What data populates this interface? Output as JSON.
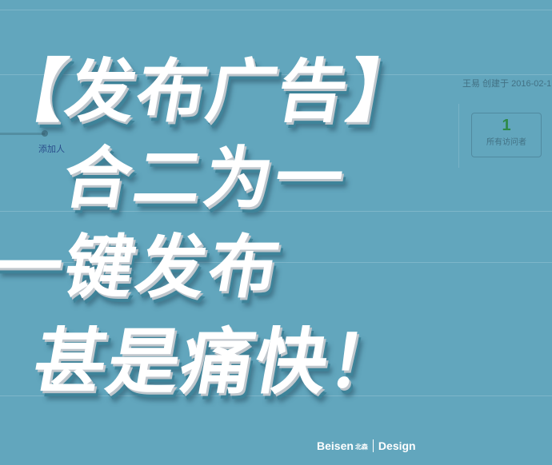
{
  "background_ui": {
    "meta": "王易 创建于 2016-02-1",
    "link": "添加人",
    "stat_value": "1",
    "stat_label": "所有访问者"
  },
  "headline": {
    "line1": "【发布广告】",
    "line2": "合二为一",
    "line3": "一键发布",
    "line4": "甚是痛快！"
  },
  "brand": {
    "name": "Beisen",
    "name_cn": "北森",
    "suffix": "Design"
  },
  "colors": {
    "background": "#62a6bd",
    "text": "#ffffff",
    "shadow": "#3e8399"
  }
}
